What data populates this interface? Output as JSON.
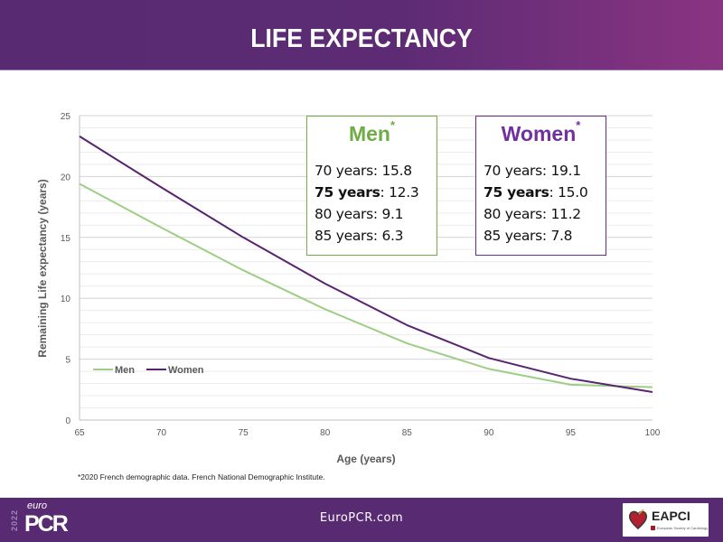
{
  "header": {
    "title": "LIFE EXPECTANCY"
  },
  "colors": {
    "men": "#9cce84",
    "women": "#582470",
    "men_box": "#70ad47",
    "women_box": "#7030a0",
    "brand_purple": "#582a72"
  },
  "boxes": {
    "men": {
      "title": "Men",
      "marker": "*",
      "rows": [
        {
          "label": "70 years",
          "value": "15.8",
          "bold": false
        },
        {
          "label": "75 years",
          "value": "12.3",
          "bold": true
        },
        {
          "label": "80 years",
          "value": "9.1",
          "bold": false
        },
        {
          "label": "85 years",
          "value": "6.3",
          "bold": false
        }
      ]
    },
    "women": {
      "title": "Women",
      "marker": "*",
      "rows": [
        {
          "label": "70 years",
          "value": "19.1",
          "bold": false
        },
        {
          "label": "75 years",
          "value": "15.0",
          "bold": true
        },
        {
          "label": "80 years",
          "value": "11.2",
          "bold": false
        },
        {
          "label": "85 years",
          "value": "7.8",
          "bold": false
        }
      ]
    }
  },
  "footnote": "*2020 French demographic data. French National Demographic Institute.",
  "footer": {
    "url": "EuroPCR.com",
    "logo_left": {
      "year": "2022",
      "euro": "euro",
      "pcr": "PCR"
    },
    "logo_right": {
      "name": "EAPCI",
      "subtitle": "European Society of Cardiology"
    }
  },
  "chart_data": {
    "type": "line",
    "title": "",
    "xlabel": "Age (years)",
    "ylabel": "Remaining Life expectancy (years)",
    "x": [
      65,
      70,
      75,
      80,
      85,
      90,
      95,
      100
    ],
    "xlim": [
      65,
      100
    ],
    "ylim": [
      0,
      25
    ],
    "xticks": [
      65,
      70,
      75,
      80,
      85,
      90,
      95,
      100
    ],
    "yticks": [
      0,
      5,
      10,
      15,
      20,
      25
    ],
    "grid": true,
    "minor_grid_step": 1,
    "legend": {
      "placement": "bottom-left",
      "entries": [
        "Men",
        "Women"
      ]
    },
    "series": [
      {
        "name": "Men",
        "color": "#9cce84",
        "values": [
          19.4,
          15.8,
          12.3,
          9.1,
          6.3,
          4.2,
          2.9,
          2.7
        ]
      },
      {
        "name": "Women",
        "color": "#582470",
        "values": [
          23.3,
          19.1,
          15.0,
          11.2,
          7.8,
          5.1,
          3.4,
          2.3
        ]
      }
    ]
  }
}
